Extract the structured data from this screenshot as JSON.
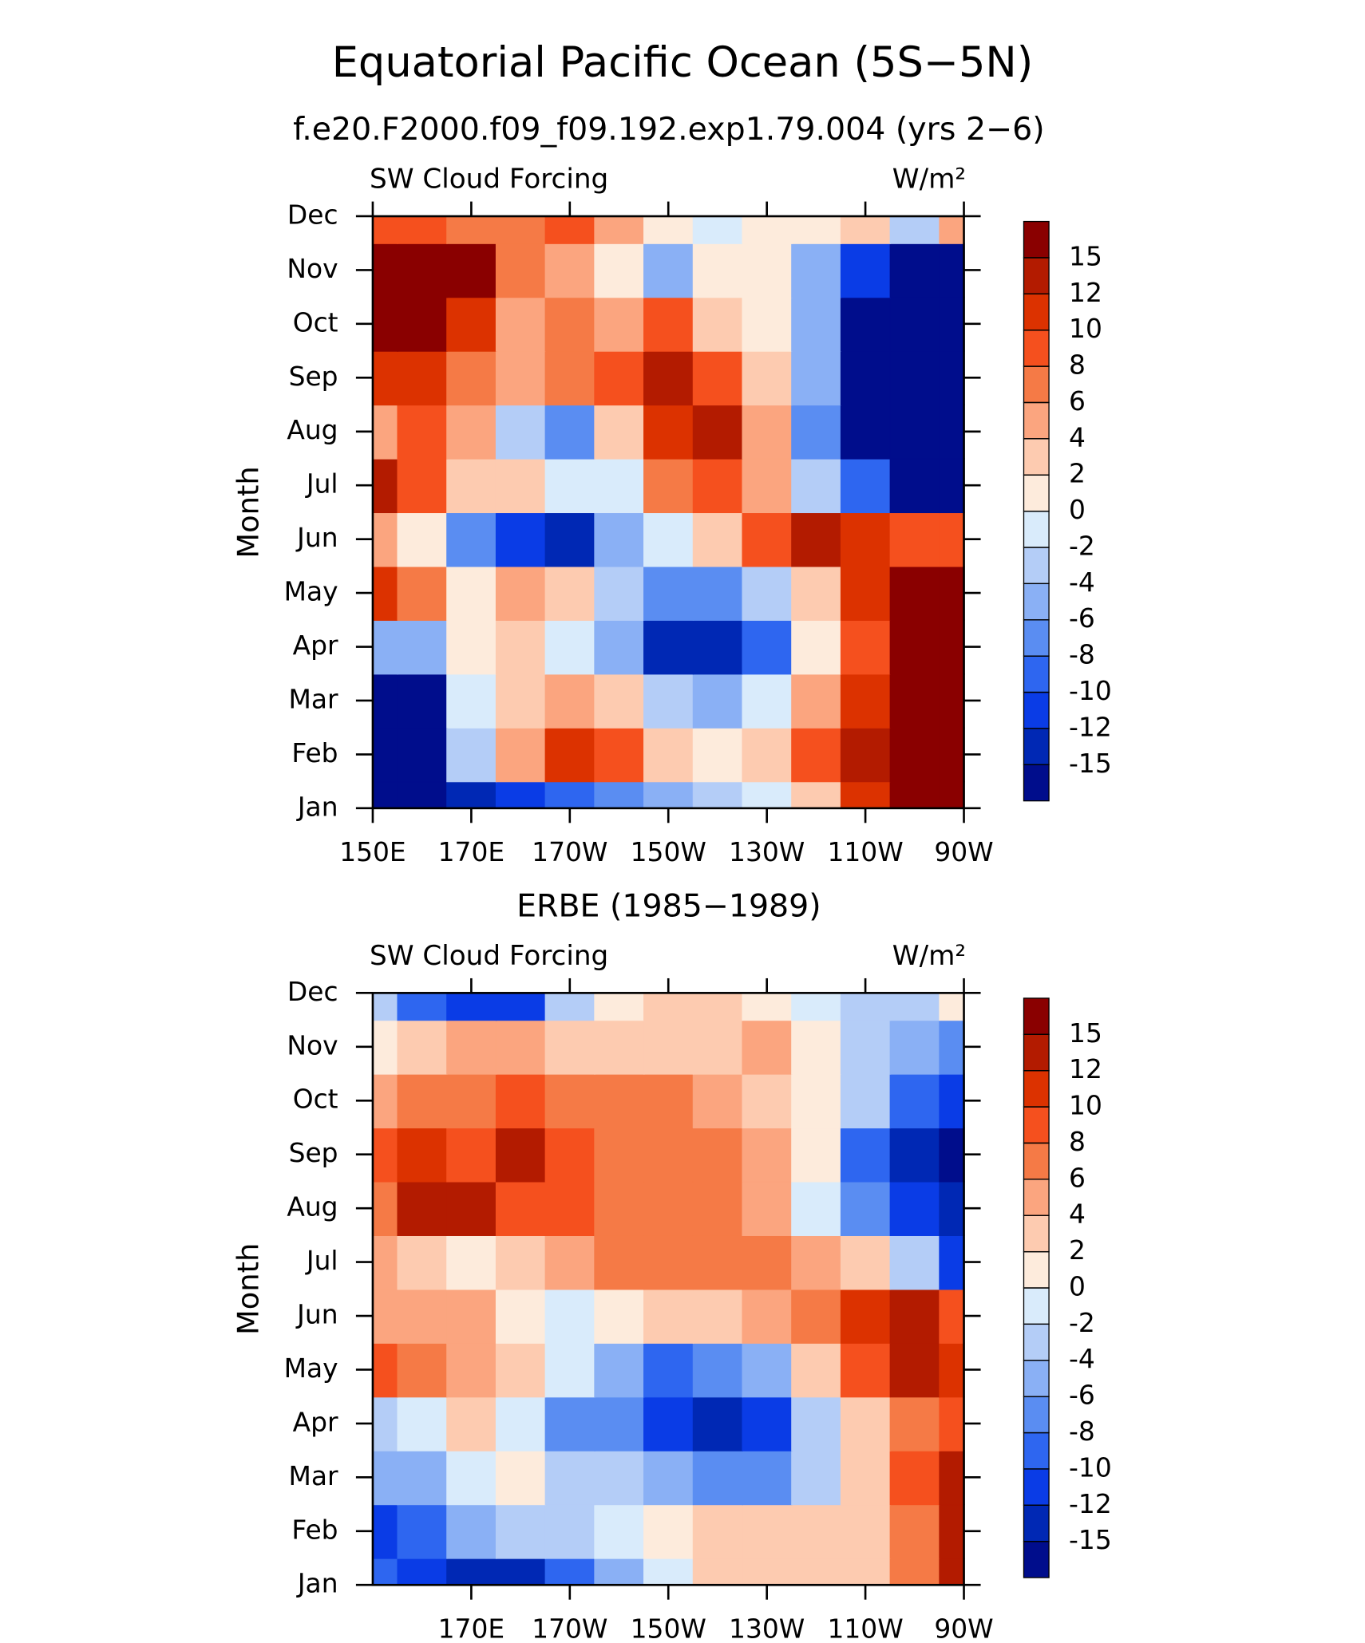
{
  "title": "Equatorial Pacific Ocean (5S−5N)",
  "chart_data": [
    {
      "type": "contour",
      "title": "f.e20.F2000.f09_f09.192.exp1.79.004 (yrs 2−6)",
      "left_label": "SW Cloud Forcing",
      "units": "W/m²",
      "ylabel": "Month",
      "x": [
        150,
        160,
        170,
        180,
        190,
        200,
        210,
        220,
        230,
        240,
        250,
        260,
        270
      ],
      "y": [
        "Jan",
        "Feb",
        "Mar",
        "Apr",
        "May",
        "Jun",
        "Jul",
        "Aug",
        "Sep",
        "Oct",
        "Nov",
        "Dec"
      ],
      "xlim": [
        150,
        270
      ],
      "xticks": [
        {
          "value": 150,
          "label": "150E"
        },
        {
          "value": 170,
          "label": "170E"
        },
        {
          "value": 190,
          "label": "170W"
        },
        {
          "value": 210,
          "label": "150W"
        },
        {
          "value": 230,
          "label": "130W"
        },
        {
          "value": 250,
          "label": "110W"
        },
        {
          "value": 270,
          "label": "90W"
        }
      ],
      "levels": [
        -15,
        -12,
        -10,
        -8,
        -6,
        -4,
        -2,
        0,
        2,
        4,
        6,
        8,
        10,
        12,
        15
      ],
      "colors": [
        "#000d8c",
        "#0028b4",
        "#0a3ce6",
        "#2e66f0",
        "#5a8df2",
        "#8ab0f5",
        "#b4cdf7",
        "#d9ebfb",
        "#fdebdc",
        "#fdcbb0",
        "#fba57f",
        "#f57a46",
        "#f5501e",
        "#dc3200",
        "#b31b00",
        "#8a0000"
      ],
      "z": [
        [
          -16,
          -16,
          -14,
          -12,
          -10,
          -8,
          -6,
          -4,
          -2,
          2,
          10,
          16,
          16
        ],
        [
          -16,
          -16,
          -4,
          4,
          10,
          8,
          2,
          0,
          2,
          8,
          12,
          16,
          16
        ],
        [
          -16,
          -16,
          -2,
          2,
          4,
          2,
          -4,
          -6,
          -2,
          4,
          10,
          16,
          16
        ],
        [
          -6,
          -6,
          0,
          2,
          -2,
          -6,
          -14,
          -14,
          -10,
          0,
          8,
          16,
          16
        ],
        [
          10,
          6,
          0,
          4,
          2,
          -4,
          -8,
          -8,
          -4,
          2,
          10,
          16,
          16
        ],
        [
          4,
          0,
          -8,
          -12,
          -14,
          -6,
          -2,
          2,
          8,
          12,
          10,
          8,
          8
        ],
        [
          14,
          8,
          2,
          2,
          -2,
          -2,
          6,
          8,
          4,
          -4,
          -10,
          -16,
          -16
        ],
        [
          4,
          8,
          4,
          -4,
          -8,
          2,
          10,
          12,
          4,
          -8,
          -16,
          -16,
          -16
        ],
        [
          10,
          10,
          6,
          4,
          6,
          8,
          12,
          8,
          2,
          -6,
          -16,
          -16,
          -16
        ],
        [
          16,
          16,
          10,
          4,
          6,
          4,
          8,
          2,
          0,
          -6,
          -16,
          -16,
          -16
        ],
        [
          16,
          16,
          16,
          6,
          4,
          0,
          -6,
          0,
          0,
          -6,
          -12,
          -16,
          -16
        ],
        [
          8,
          8,
          6,
          6,
          8,
          4,
          0,
          -2,
          0,
          0,
          2,
          -4,
          4
        ]
      ]
    },
    {
      "type": "contour",
      "title": "ERBE (1985−1989)",
      "left_label": "SW Cloud Forcing",
      "units": "W/m²",
      "ylabel": "Month",
      "x": [
        150,
        160,
        170,
        180,
        190,
        200,
        210,
        220,
        230,
        240,
        250,
        260,
        270
      ],
      "y": [
        "Jan",
        "Feb",
        "Mar",
        "Apr",
        "May",
        "Jun",
        "Jul",
        "Aug",
        "Sep",
        "Oct",
        "Nov",
        "Dec"
      ],
      "xlim": [
        150,
        270
      ],
      "xticks": [
        {
          "value": 170,
          "label": "170E"
        },
        {
          "value": 190,
          "label": "170W"
        },
        {
          "value": 210,
          "label": "150W"
        },
        {
          "value": 230,
          "label": "130W"
        },
        {
          "value": 250,
          "label": "110W"
        },
        {
          "value": 270,
          "label": "90W"
        }
      ],
      "levels": [
        -15,
        -12,
        -10,
        -8,
        -6,
        -4,
        -2,
        0,
        2,
        4,
        6,
        8,
        10,
        12,
        15
      ],
      "colors": [
        "#000d8c",
        "#0028b4",
        "#0a3ce6",
        "#2e66f0",
        "#5a8df2",
        "#8ab0f5",
        "#b4cdf7",
        "#d9ebfb",
        "#fdebdc",
        "#fdcbb0",
        "#fba57f",
        "#f57a46",
        "#f5501e",
        "#dc3200",
        "#b31b00",
        "#8a0000"
      ],
      "z": [
        [
          -10,
          -12,
          -14,
          -15,
          -10,
          -6,
          -2,
          2,
          2,
          2,
          2,
          6,
          12
        ],
        [
          -12,
          -10,
          -6,
          -4,
          -4,
          -2,
          0,
          2,
          2,
          2,
          2,
          6,
          14
        ],
        [
          -6,
          -6,
          -2,
          0,
          -4,
          -4,
          -6,
          -8,
          -8,
          -4,
          2,
          8,
          12
        ],
        [
          -4,
          -2,
          2,
          -2,
          -8,
          -8,
          -12,
          -14,
          -12,
          -4,
          2,
          6,
          8
        ],
        [
          8,
          6,
          4,
          2,
          -2,
          -6,
          -10,
          -8,
          -6,
          2,
          8,
          12,
          10
        ],
        [
          4,
          4,
          4,
          0,
          -2,
          0,
          2,
          2,
          4,
          6,
          10,
          12,
          8
        ],
        [
          4,
          2,
          0,
          2,
          4,
          6,
          6,
          6,
          6,
          4,
          2,
          -4,
          -12
        ],
        [
          6,
          12,
          12,
          8,
          8,
          6,
          6,
          6,
          4,
          -2,
          -8,
          -12,
          -14
        ],
        [
          8,
          10,
          8,
          12,
          8,
          6,
          6,
          6,
          4,
          0,
          -10,
          -14,
          -16
        ],
        [
          4,
          6,
          6,
          8,
          6,
          6,
          6,
          4,
          2,
          0,
          -4,
          -10,
          -12
        ],
        [
          0,
          2,
          4,
          4,
          2,
          2,
          2,
          2,
          4,
          0,
          -4,
          -6,
          -8
        ],
        [
          -4,
          -10,
          -12,
          -12,
          -4,
          0,
          2,
          2,
          0,
          -2,
          -4,
          -4,
          0
        ]
      ]
    }
  ]
}
